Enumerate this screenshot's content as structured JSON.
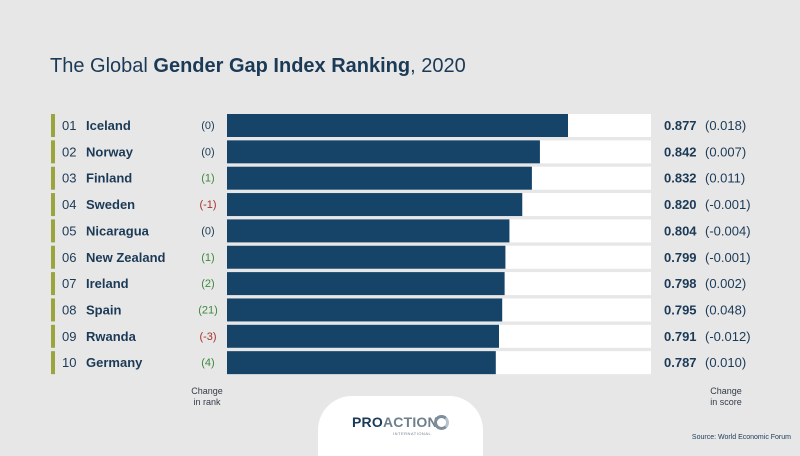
{
  "title": {
    "prefix": "The Global ",
    "bold": "Gender Gap Index Ranking",
    "suffix": ", 2020"
  },
  "chart_data": {
    "type": "bar",
    "orientation": "horizontal",
    "xlim": [
      0,
      1
    ],
    "categories": [
      "Iceland",
      "Norway",
      "Finland",
      "Sweden",
      "Nicaragua",
      "New Zealand",
      "Ireland",
      "Spain",
      "Rwanda",
      "Germany"
    ],
    "ranks": [
      "01",
      "02",
      "03",
      "04",
      "05",
      "06",
      "07",
      "08",
      "09",
      "10"
    ],
    "values": [
      0.877,
      0.842,
      0.832,
      0.82,
      0.804,
      0.799,
      0.798,
      0.795,
      0.791,
      0.787
    ],
    "value_labels": [
      "0.877",
      "0.842",
      "0.832",
      "0.820",
      "0.804",
      "0.799",
      "0.798",
      "0.795",
      "0.791",
      "0.787"
    ],
    "rank_changes": [
      "(0)",
      "(0)",
      "(1)",
      "(-1)",
      "(0)",
      "(1)",
      "(2)",
      "(21)",
      "(-3)",
      "(4)"
    ],
    "score_changes": [
      "(0.018)",
      "(0.007)",
      "(0.011)",
      "(-0.001)",
      "(-0.004)",
      "(-0.001)",
      "(0.002)",
      "(0.048)",
      "(-0.012)",
      "(0.010)"
    ],
    "colors": {
      "bar": "#164468",
      "track": "#ffffff",
      "row_marker": "#9aa63c",
      "change_positive": "#3d8a3a",
      "change_negative": "#a8322d",
      "change_neutral": "#1b3a56"
    }
  },
  "footer": {
    "change_rank": [
      "Change",
      "in rank"
    ],
    "change_score": [
      "Change",
      "in score"
    ],
    "source": "Source: World Economic Forum"
  },
  "logo": {
    "pro": "PRO",
    "action": "ACTION",
    "sub": "INTERNATIONAL"
  }
}
